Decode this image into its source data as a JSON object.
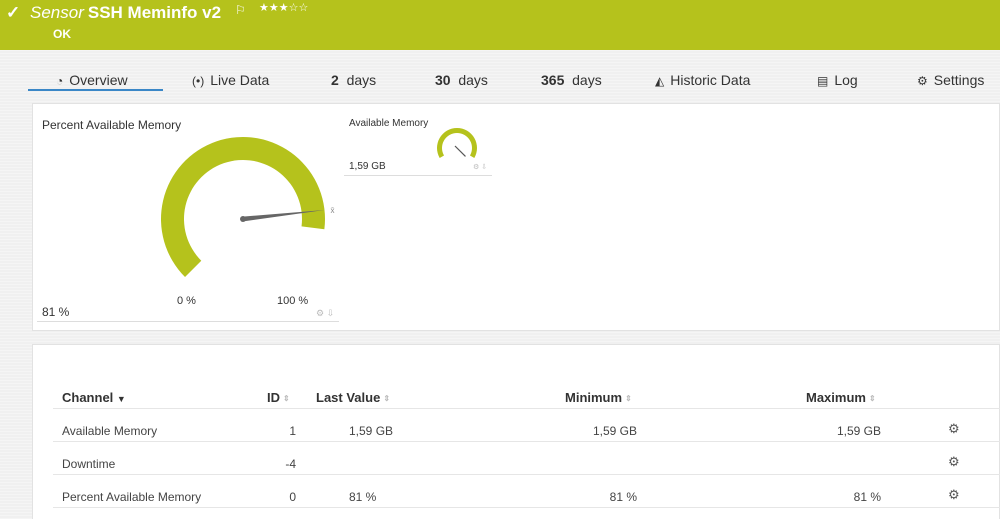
{
  "header": {
    "title_prefix": "Sensor",
    "title_name": "SSH Meminfo v2",
    "stars": "★★★☆☆",
    "status": "OK",
    "status_icon": "check-icon",
    "flag_icon": "flag-icon",
    "color": "#b5c21c"
  },
  "tabs": [
    {
      "icon": "",
      "label": "Overview",
      "active": true
    },
    {
      "icon": "",
      "label": "Live Data"
    },
    {
      "bold": "2",
      "label": "days"
    },
    {
      "bold": "30",
      "label": "days"
    },
    {
      "bold": "365",
      "label": "days"
    },
    {
      "icon": "",
      "label": "Historic Data"
    },
    {
      "icon": "",
      "label": "Log"
    },
    {
      "icon": "",
      "label": "Settings"
    }
  ],
  "gauges": {
    "main": {
      "title": "Percent Available Memory",
      "min_label": "0 %",
      "max_label": "100 %",
      "value": "81 %",
      "fraction": 0.81
    },
    "small": {
      "title": "Available Memory",
      "value": "1,59 GB"
    }
  },
  "table": {
    "headers": [
      "Channel",
      "ID",
      "Last Value",
      "Minimum",
      "Maximum"
    ],
    "rows": [
      {
        "channel": "Available Memory",
        "id": "1",
        "last": "1,59 GB",
        "min": "1,59 GB",
        "max": "1,59 GB"
      },
      {
        "channel": "Downtime",
        "id": "-4",
        "last": "",
        "min": "",
        "max": ""
      },
      {
        "channel": "Percent Available Memory",
        "id": "0",
        "last": "81 %",
        "min": "81 %",
        "max": "81 %"
      }
    ]
  }
}
